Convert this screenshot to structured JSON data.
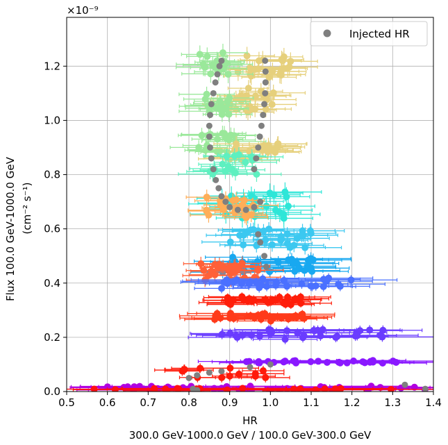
{
  "chart_data": {
    "type": "scatter",
    "title": "",
    "xlabel": "HR",
    "xlabel_sub": "300.0 GeV-1000.0 GeV / 100.0 GeV-300.0 GeV",
    "ylabel": "Flux 100.0 GeV-1000.0 GeV",
    "ylabel_unit": "(cm⁻² s⁻¹)",
    "y_offset_text": "×10⁻⁹",
    "xlim": [
      0.5,
      1.4
    ],
    "ylim": [
      0.0,
      1.38
    ],
    "xticks": [
      0.5,
      0.6,
      0.7,
      0.8,
      0.9,
      1.0,
      1.1,
      1.2,
      1.3,
      1.4
    ],
    "xtick_labels": [
      "0.5",
      "0.6",
      "0.7",
      "0.8",
      "0.9",
      "1.0",
      "1.1",
      "1.2",
      "1.3",
      "1.4"
    ],
    "yticks": [
      0.0,
      0.2,
      0.4,
      0.6,
      0.8,
      1.0,
      1.2
    ],
    "ytick_labels": [
      "0.0",
      "0.2",
      "0.4",
      "0.6",
      "0.8",
      "1.0",
      "1.2"
    ],
    "grid": true,
    "legend": {
      "position": "top-right",
      "entries": [
        {
          "label": "Injected HR",
          "color": "#7f7f7f"
        }
      ]
    },
    "injected_hr": {
      "color": "#7f7f7f",
      "points": [
        [
          0.88,
          1.22
        ],
        [
          0.875,
          1.2
        ],
        [
          0.87,
          1.17
        ],
        [
          0.865,
          1.14
        ],
        [
          0.86,
          1.1
        ],
        [
          0.855,
          1.06
        ],
        [
          0.852,
          1.02
        ],
        [
          0.85,
          0.98
        ],
        [
          0.85,
          0.94
        ],
        [
          0.852,
          0.9
        ],
        [
          0.855,
          0.86
        ],
        [
          0.86,
          0.82
        ],
        [
          0.866,
          0.78
        ],
        [
          0.873,
          0.75
        ],
        [
          0.88,
          0.72
        ],
        [
          0.89,
          0.7
        ],
        [
          0.9,
          0.68
        ],
        [
          0.92,
          0.67
        ],
        [
          0.94,
          0.67
        ],
        [
          0.96,
          0.68
        ],
        [
          0.975,
          0.7
        ],
        [
          0.96,
          0.82
        ],
        [
          0.965,
          0.86
        ],
        [
          0.97,
          0.9
        ],
        [
          0.974,
          0.94
        ],
        [
          0.978,
          0.98
        ],
        [
          0.982,
          1.02
        ],
        [
          0.985,
          1.06
        ],
        [
          0.987,
          1.1
        ],
        [
          0.988,
          1.14
        ],
        [
          0.988,
          1.18
        ],
        [
          0.987,
          1.22
        ],
        [
          0.97,
          0.58
        ],
        [
          0.975,
          0.55
        ],
        [
          0.985,
          0.5
        ],
        [
          0.99,
          0.46
        ],
        [
          0.8,
          0.05
        ],
        [
          0.82,
          0.06
        ],
        [
          0.85,
          0.07
        ],
        [
          0.88,
          0.075
        ],
        [
          0.95,
          0.09
        ],
        [
          1.0,
          0.1
        ],
        [
          0.81,
          0.01
        ],
        [
          0.82,
          0.005
        ],
        [
          1.33,
          0.025
        ],
        [
          1.38,
          0.01
        ]
      ]
    },
    "bands": [
      {
        "color": "#e6d07c",
        "y": [
          1.15,
          1.25
        ],
        "x": [
          0.92,
          1.05
        ],
        "n": 22,
        "xerr": 0.06
      },
      {
        "color": "#9ae89a",
        "y": [
          1.15,
          1.25
        ],
        "x": [
          0.82,
          0.9
        ],
        "n": 16,
        "xerr": 0.06
      },
      {
        "color": "#e6d07c",
        "y": [
          1.03,
          1.12
        ],
        "x": [
          0.9,
          1.03
        ],
        "n": 22,
        "xerr": 0.06
      },
      {
        "color": "#9ae89a",
        "y": [
          1.02,
          1.1
        ],
        "x": [
          0.82,
          0.9
        ],
        "n": 16,
        "xerr": 0.06
      },
      {
        "color": "#9ae89a",
        "y": [
          0.88,
          0.96
        ],
        "x": [
          0.82,
          0.92
        ],
        "n": 18,
        "xerr": 0.06
      },
      {
        "color": "#e6d07c",
        "y": [
          0.85,
          0.93
        ],
        "x": [
          0.9,
          1.02
        ],
        "n": 22,
        "xerr": 0.06
      },
      {
        "color": "#5ef0c0",
        "y": [
          0.8,
          0.88
        ],
        "x": [
          0.85,
          1.0
        ],
        "n": 16,
        "xerr": 0.07
      },
      {
        "color": "#2ee6d8",
        "y": [
          0.63,
          0.74
        ],
        "x": [
          0.88,
          1.05
        ],
        "n": 26,
        "xerr": 0.07
      },
      {
        "color": "#ffae58",
        "y": [
          0.64,
          0.72
        ],
        "x": [
          0.84,
          0.96
        ],
        "n": 22,
        "xerr": 0.05
      },
      {
        "color": "#3cc8f0",
        "y": [
          0.53,
          0.6
        ],
        "x": [
          0.9,
          1.1
        ],
        "n": 28,
        "xerr": 0.07
      },
      {
        "color": "#18a8f0",
        "y": [
          0.44,
          0.5
        ],
        "x": [
          0.88,
          1.12
        ],
        "n": 28,
        "xerr": 0.08
      },
      {
        "color": "#ff6038",
        "y": [
          0.41,
          0.48
        ],
        "x": [
          0.82,
          0.98
        ],
        "n": 24,
        "xerr": 0.06
      },
      {
        "color": "#4a70ff",
        "y": [
          0.38,
          0.42
        ],
        "x": [
          0.88,
          1.22
        ],
        "n": 30,
        "xerr": 0.09
      },
      {
        "color": "#ff1e0a",
        "y": [
          0.32,
          0.35
        ],
        "x": [
          0.88,
          1.08
        ],
        "n": 28,
        "xerr": 0.07
      },
      {
        "color": "#ff3a1a",
        "y": [
          0.26,
          0.29
        ],
        "x": [
          0.85,
          1.1
        ],
        "n": 28,
        "xerr": 0.08
      },
      {
        "color": "#6a3cff",
        "y": [
          0.19,
          0.23
        ],
        "x": [
          0.88,
          1.3
        ],
        "n": 32,
        "xerr": 0.1
      },
      {
        "color": "#8a18ff",
        "y": [
          0.105,
          0.115
        ],
        "x": [
          0.94,
          1.32
        ],
        "n": 28,
        "xerr": 0.1
      },
      {
        "color": "#ff1a0a",
        "y": [
          0.05,
          0.09
        ],
        "x": [
          0.78,
          1.0
        ],
        "n": 14,
        "xerr": 0.06
      },
      {
        "color": "#b000e0",
        "y": [
          0.005,
          0.02
        ],
        "x": [
          0.55,
          1.38
        ],
        "n": 40,
        "xerr": 0.12
      },
      {
        "color": "#ff1010",
        "y": [
          0.003,
          0.012
        ],
        "x": [
          0.55,
          1.3
        ],
        "n": 20,
        "xerr": 0.12
      }
    ]
  }
}
